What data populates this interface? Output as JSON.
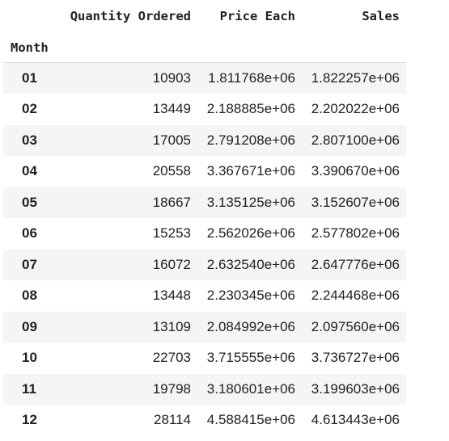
{
  "table": {
    "columns": [
      "Quantity Ordered",
      "Price Each",
      "Sales"
    ],
    "index_name": "Month",
    "rows": [
      {
        "month": "01",
        "quantity": "10903",
        "price": "1.811768e+06",
        "sales": "1.822257e+06"
      },
      {
        "month": "02",
        "quantity": "13449",
        "price": "2.188885e+06",
        "sales": "2.202022e+06"
      },
      {
        "month": "03",
        "quantity": "17005",
        "price": "2.791208e+06",
        "sales": "2.807100e+06"
      },
      {
        "month": "04",
        "quantity": "20558",
        "price": "3.367671e+06",
        "sales": "3.390670e+06"
      },
      {
        "month": "05",
        "quantity": "18667",
        "price": "3.135125e+06",
        "sales": "3.152607e+06"
      },
      {
        "month": "06",
        "quantity": "15253",
        "price": "2.562026e+06",
        "sales": "2.577802e+06"
      },
      {
        "month": "07",
        "quantity": "16072",
        "price": "2.632540e+06",
        "sales": "2.647776e+06"
      },
      {
        "month": "08",
        "quantity": "13448",
        "price": "2.230345e+06",
        "sales": "2.244468e+06"
      },
      {
        "month": "09",
        "quantity": "13109",
        "price": "2.084992e+06",
        "sales": "2.097560e+06"
      },
      {
        "month": "10",
        "quantity": "22703",
        "price": "3.715555e+06",
        "sales": "3.736727e+06"
      },
      {
        "month": "11",
        "quantity": "19798",
        "price": "3.180601e+06",
        "sales": "3.199603e+06"
      },
      {
        "month": "12",
        "quantity": "28114",
        "price": "4.588415e+06",
        "sales": "4.613443e+06"
      }
    ]
  },
  "colors": {
    "text": "#212121",
    "row_stripe": "#f5f5f5",
    "header_border": "#d9d9d9"
  }
}
